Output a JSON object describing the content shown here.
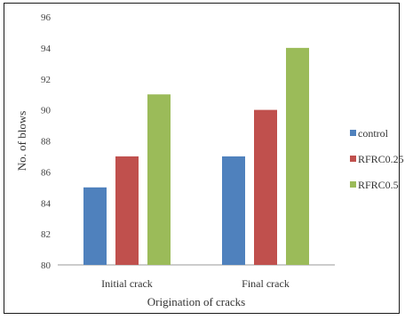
{
  "chart_data": {
    "type": "bar",
    "title": "",
    "xlabel": "Origination of cracks",
    "ylabel": "No. of blows",
    "categories": [
      "Initial crack",
      "Final crack"
    ],
    "series": [
      {
        "name": "control",
        "values": [
          85,
          87
        ],
        "color": "#4f81bd"
      },
      {
        "name": "RFRC0.25",
        "values": [
          87,
          90
        ],
        "color": "#c0504d"
      },
      {
        "name": "RFRC0.5",
        "values": [
          91,
          94
        ],
        "color": "#9bbb59"
      }
    ],
    "ylim": [
      80,
      96
    ],
    "yticks": [
      80,
      82,
      84,
      86,
      88,
      90,
      92,
      94,
      96
    ],
    "grid": false,
    "legend": "right"
  }
}
